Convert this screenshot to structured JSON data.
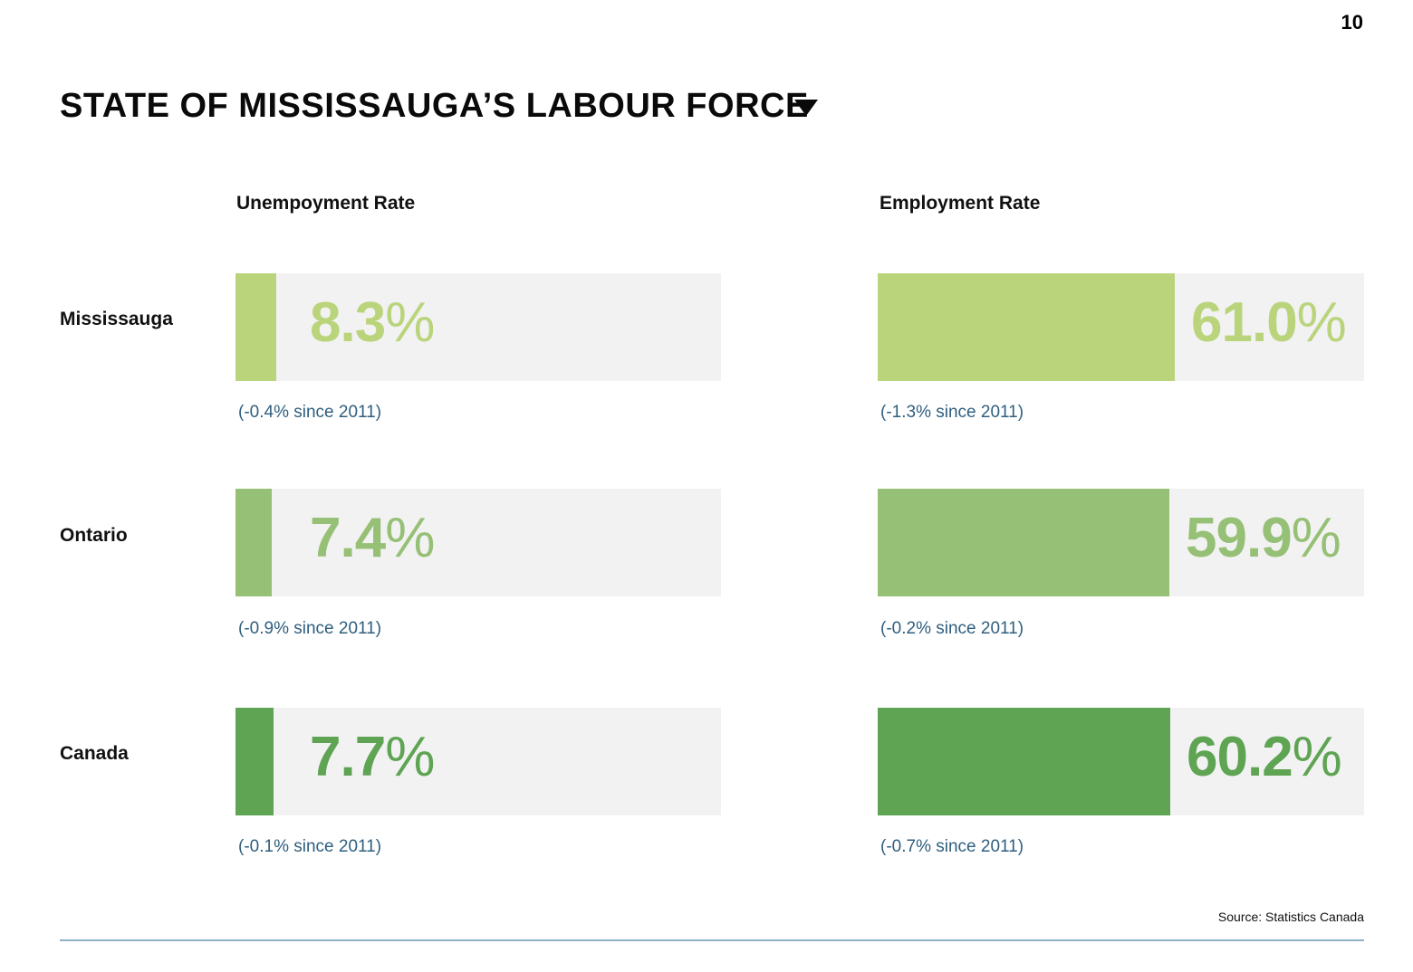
{
  "page_number": "10",
  "title": "STATE OF MISSISSAUGA’S LABOUR FORCE",
  "source": "Source: Statistics Canada",
  "colors": {
    "mississauga": "#b9d47b",
    "ontario": "#96c075",
    "canada": "#5ea452",
    "track": "#f2f2f3",
    "note": "#2f5f7f"
  },
  "chart_data": [
    {
      "type": "bar",
      "title": "Unempoyment Rate",
      "categories": [
        "Mississauga",
        "Ontario",
        "Canada"
      ],
      "values": [
        8.3,
        7.4,
        7.7
      ],
      "value_labels": [
        "8.3",
        "7.4",
        "7.7"
      ],
      "unit": "%",
      "changes": [
        "(-0.4% since 2011)",
        "(-0.9% since 2011)",
        "(-0.1% since 2011)"
      ],
      "orientation": "horizontal"
    },
    {
      "type": "bar",
      "title": "Employment Rate",
      "categories": [
        "Mississauga",
        "Ontario",
        "Canada"
      ],
      "values": [
        61.0,
        59.9,
        60.2
      ],
      "value_labels": [
        "61.0",
        "59.9",
        "60.2"
      ],
      "unit": "%",
      "changes": [
        "(-1.3% since 2011)",
        "(-0.2% since 2011)",
        "(-0.7% since 2011)"
      ],
      "orientation": "horizontal"
    }
  ]
}
